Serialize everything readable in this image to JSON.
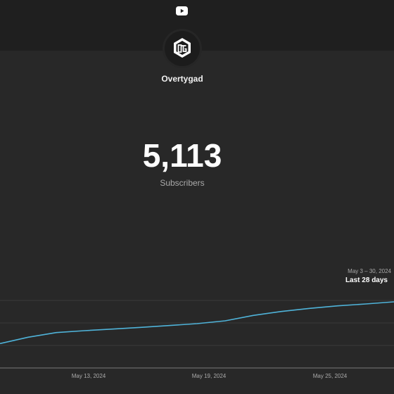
{
  "header": {
    "logo_icon": "youtube-icon"
  },
  "channel": {
    "avatar_icon": "otg-logo",
    "name": "Overtygad"
  },
  "stats": {
    "subscriber_count": "5,113",
    "subscriber_label": "Subscribers"
  },
  "chart_data": {
    "type": "line",
    "date_range": "May 3 – 30, 2024",
    "period_label": "Last 28 days",
    "x_ticks": [
      "May 13, 2024",
      "May 19, 2024",
      "May 25, 2024"
    ],
    "x": [
      "May 3",
      "May 5",
      "May 7",
      "May 9",
      "May 11",
      "May 13",
      "May 15",
      "May 17",
      "May 19",
      "May 21",
      "May 23",
      "May 25",
      "May 27",
      "May 29",
      "May 30"
    ],
    "series": [
      {
        "values": [
          4935,
          4962,
          4982,
          4990,
          4997,
          5004,
          5012,
          5020,
          5032,
          5055,
          5072,
          5085,
          5096,
          5104,
          5113
        ]
      }
    ],
    "line_color": "#4fb3d9",
    "grid": true
  }
}
